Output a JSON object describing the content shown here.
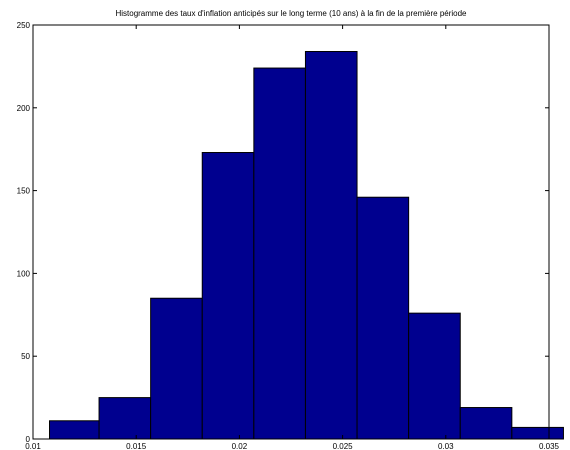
{
  "chart_data": {
    "type": "bar",
    "title": "Histogramme des taux d'inflation anticipés sur le long terme (10 ans) à la fin de la première période",
    "xlabel": "",
    "ylabel": "",
    "xlim": [
      0.01,
      0.035
    ],
    "ylim": [
      0,
      250
    ],
    "x_ticks": [
      "0.01",
      "0.015",
      "0.02",
      "0.025",
      "0.03",
      "0.035"
    ],
    "y_ticks": [
      "0",
      "50",
      "100",
      "150",
      "200",
      "250"
    ],
    "bins": [
      {
        "left": 0.0108,
        "right": 0.0132,
        "count": 11
      },
      {
        "left": 0.0132,
        "right": 0.0157,
        "count": 25
      },
      {
        "left": 0.0157,
        "right": 0.0182,
        "count": 85
      },
      {
        "left": 0.0182,
        "right": 0.0207,
        "count": 173
      },
      {
        "left": 0.0207,
        "right": 0.0232,
        "count": 224
      },
      {
        "left": 0.0232,
        "right": 0.0257,
        "count": 234
      },
      {
        "left": 0.0257,
        "right": 0.0282,
        "count": 146
      },
      {
        "left": 0.0282,
        "right": 0.0307,
        "count": 76
      },
      {
        "left": 0.0307,
        "right": 0.0332,
        "count": 19
      },
      {
        "left": 0.0332,
        "right": 0.0357,
        "count": 7
      }
    ],
    "grid": false,
    "bar_color": "#00008f",
    "edge_color": "#000000"
  }
}
